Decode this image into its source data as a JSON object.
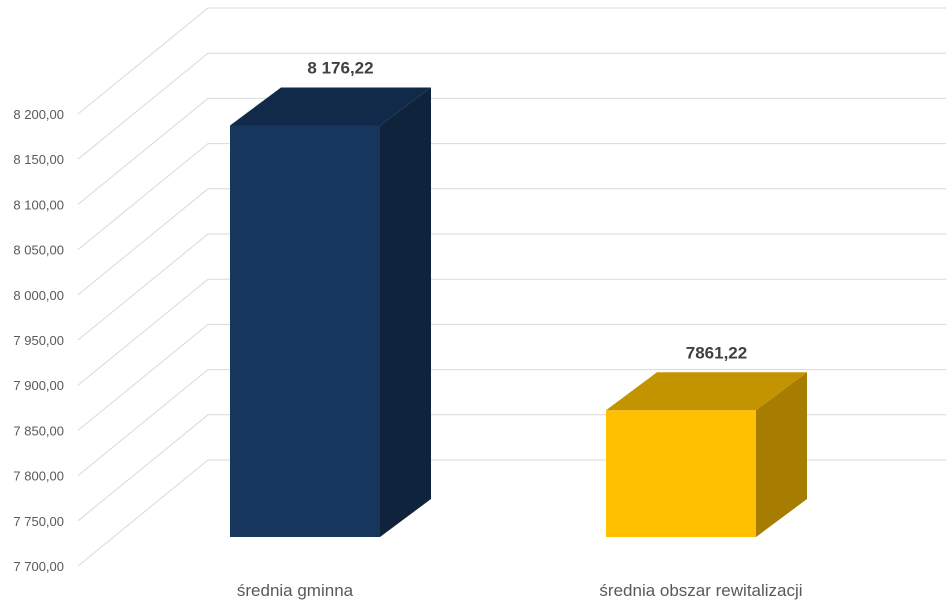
{
  "chart_data": {
    "type": "bar",
    "style": "3d-column",
    "categories": [
      "średnia gminna",
      "średnia obszar rewitalizacji"
    ],
    "values": [
      8176.22,
      7861.22
    ],
    "data_labels": [
      "8 176,22",
      "7861,22"
    ],
    "colors": [
      "#17365D",
      "#FFC000"
    ],
    "ylim": [
      7700,
      8200
    ],
    "ytick_step": 50,
    "ytick_labels": [
      "7 700,00",
      "7 750,00",
      "7 800,00",
      "7 850,00",
      "7 900,00",
      "7 950,00",
      "8 000,00",
      "8 050,00",
      "8 100,00",
      "8 150,00",
      "8 200,00"
    ],
    "grid": true,
    "title": "",
    "xlabel": "",
    "ylabel": ""
  }
}
